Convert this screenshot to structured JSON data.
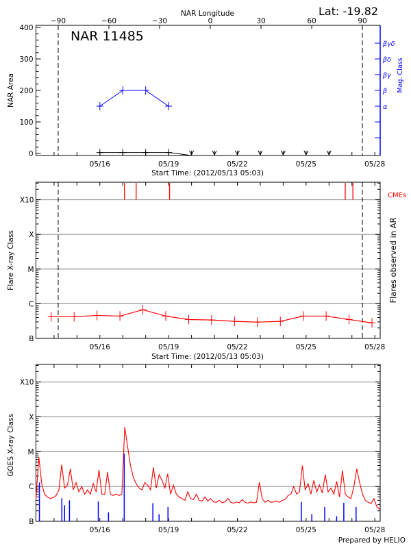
{
  "start_time_label": "Start Time: (2012/05/13 05:03)",
  "footer": "Prepared by HELIO",
  "colors": {
    "area": "#000000",
    "mag_class": "#0000ff",
    "flares": "#ff0000",
    "cme": "#ff0000",
    "goes_long": "#ff0000",
    "goes_short": "#0000ff",
    "grid": "#999999"
  },
  "chart_data": [
    {
      "type": "line",
      "title": "NAR 11485",
      "lat_label": "Lat: -19.82",
      "ylabel": "NAR Area",
      "y2label": "Mag. Class",
      "top_xlabel": "NAR Longitude",
      "xlabel": "Start Time: (2012/05/13 05:03)",
      "xlim": [
        "2012-05-13T05:03",
        "2012-05-28T05:30"
      ],
      "ylim": [
        -6.5,
        406.5
      ],
      "yticks": [
        0,
        100,
        200,
        300,
        400
      ],
      "xticks": [
        "05/16",
        "05/19",
        "05/22",
        "05/25",
        "05/28"
      ],
      "top_xticks": [
        -90,
        -60,
        -30,
        0,
        30,
        60,
        90
      ],
      "limb_longitudes": [
        -90,
        90
      ],
      "mag_class_ticks": [
        {
          "level": 50,
          "label": ""
        },
        {
          "level": 100,
          "label": ""
        },
        {
          "level": 150,
          "label": "α"
        },
        {
          "level": 200,
          "label": "β"
        },
        {
          "level": 250,
          "label": "βγ"
        },
        {
          "level": 300,
          "label": "βδ"
        },
        {
          "level": 350,
          "label": "βγδ"
        }
      ],
      "series": [
        {
          "key": "area",
          "points": [
            [
              "2012-05-16T00:00",
              3
            ],
            [
              "2012-05-17T00:00",
              3
            ],
            [
              "2012-05-18T00:00",
              3
            ],
            [
              "2012-05-19T00:00",
              3
            ]
          ],
          "no_data": [
            "2012-05-20T00:00",
            "2012-05-21T00:00",
            "2012-05-22T00:00",
            "2012-05-23T00:00",
            "2012-05-24T00:00",
            "2012-05-25T00:00",
            "2012-05-26T00:00"
          ]
        },
        {
          "key": "mag_class",
          "points": [
            [
              "2012-05-16T00:00",
              "α"
            ],
            [
              "2012-05-17T00:00",
              "β"
            ],
            [
              "2012-05-18T00:00",
              "β"
            ],
            [
              "2012-05-19T00:00",
              "α"
            ]
          ]
        }
      ]
    },
    {
      "type": "line",
      "ylabel": "Flare X-ray Class",
      "y2label": "Flares observed in AR",
      "cme_label": "CMEs",
      "xlabel": "Start Time: (2012/05/13 05:03)",
      "yscale": "log",
      "ylim": [
        1e-07,
        0.0032
      ],
      "yticks": [
        {
          "value": 1e-07,
          "label": "B"
        },
        {
          "value": 1e-06,
          "label": "C"
        },
        {
          "value": 1e-05,
          "label": "M"
        },
        {
          "value": 0.0001,
          "label": "X"
        },
        {
          "value": 0.001,
          "label": "X10"
        }
      ],
      "xticks": [
        "05/16",
        "05/19",
        "05/22",
        "05/25",
        "05/28"
      ],
      "grid": true,
      "cmes": [
        "2012-05-17T01:45",
        "2012-05-17T14:00",
        "2012-05-19T01:00",
        "2012-05-26T17:00",
        "2012-05-27T01:00"
      ],
      "flares": [
        [
          "2012-05-13T21:00",
          4.2e-07
        ],
        [
          "2012-05-14T21:00",
          4.2e-07
        ],
        [
          "2012-05-15T21:00",
          4.6e-07
        ],
        [
          "2012-05-16T21:00",
          4.4e-07
        ],
        [
          "2012-05-17T21:00",
          6.7e-07
        ],
        [
          "2012-05-18T21:00",
          4.4e-07
        ],
        [
          "2012-05-19T21:00",
          3.5e-07
        ],
        [
          "2012-05-20T21:00",
          3.4e-07
        ],
        [
          "2012-05-21T21:00",
          3.1e-07
        ],
        [
          "2012-05-22T21:00",
          2.95e-07
        ],
        [
          "2012-05-23T21:00",
          3.1e-07
        ],
        [
          "2012-05-24T21:00",
          4.4e-07
        ],
        [
          "2012-05-25T21:00",
          4.4e-07
        ],
        [
          "2012-05-26T21:00",
          3.5e-07
        ],
        [
          "2012-05-27T21:00",
          2.8e-07
        ]
      ]
    },
    {
      "type": "line",
      "ylabel": "GOES X-ray Class",
      "yscale": "log",
      "ylim": [
        1e-07,
        0.0032
      ],
      "yticks": [
        {
          "value": 1e-07,
          "label": "B"
        },
        {
          "value": 1e-06,
          "label": "C"
        },
        {
          "value": 1e-05,
          "label": "M"
        },
        {
          "value": 0.0001,
          "label": "X"
        },
        {
          "value": 0.001,
          "label": "X10"
        }
      ],
      "xticks": [
        "05/16",
        "05/19",
        "05/22",
        "05/25",
        "05/28"
      ],
      "grid": true,
      "goes_long": {
        "start": "2012-05-13T05:03",
        "interval_hours": 3,
        "values": [
          4.5e-07,
          7e-06,
          1.2e-06,
          6e-07,
          5e-07,
          4.5e-07,
          4.8e-07,
          5.5e-07,
          8e-07,
          4.2e-06,
          9e-07,
          1.1e-06,
          3.2e-06,
          8e-07,
          1.3e-06,
          7e-07,
          1e-06,
          6e-07,
          8e-07,
          6e-07,
          1.2e-06,
          7e-07,
          3e-06,
          6e-07,
          6e-07,
          2.6e-06,
          6e-07,
          5.5e-07,
          6e-07,
          5.5e-07,
          6e-07,
          5.1e-05,
          1.4e-05,
          4e-06,
          1.8e-06,
          1.2e-06,
          9e-07,
          8e-07,
          1.3e-06,
          1.1e-06,
          8e-07,
          3.5e-06,
          9e-07,
          2.2e-06,
          1.5e-06,
          9e-07,
          2.3e-06,
          6e-07,
          1.1e-06,
          6e-07,
          5e-07,
          4.5e-07,
          4e-07,
          7e-07,
          4.5e-07,
          4.2e-07,
          6e-07,
          4e-07,
          3.8e-07,
          5e-07,
          3.8e-07,
          4.5e-07,
          3.6e-07,
          3.5e-07,
          4e-07,
          3.4e-07,
          3.6e-07,
          4.5e-07,
          3.5e-07,
          3.3e-07,
          3.6e-07,
          3.4e-07,
          4.2e-07,
          3.5e-07,
          3.3e-07,
          3.6e-07,
          3.4e-07,
          3.5e-07,
          1.3e-06,
          4.5e-07,
          3.5e-07,
          4e-07,
          3.5e-07,
          3.6e-07,
          3.8e-07,
          3.5e-07,
          4e-07,
          4.2e-07,
          5.5e-07,
          6e-07,
          1e-06,
          6e-07,
          7e-07,
          4e-06,
          8e-07,
          1.2e-06,
          6e-07,
          1.5e-06,
          7e-07,
          1.1e-06,
          6.5e-07,
          2.2e-06,
          7e-07,
          9e-07,
          6e-07,
          1.4e-06,
          5e-07,
          2.9e-06,
          6e-07,
          5e-07,
          4.5e-07,
          1e-06,
          3.2e-06,
          1.3e-06,
          6e-07,
          4e-07,
          3.5e-07,
          3.2e-07,
          4.5e-07,
          2.6e-07,
          2.2e-07
        ]
      },
      "goes_short": [
        [
          "2012-05-13T08:40",
          1.3e-06
        ],
        [
          "2012-05-14T08:10",
          4.6e-07
        ],
        [
          "2012-05-14T11:00",
          2.9e-07
        ],
        [
          "2012-05-14T16:10",
          4e-07
        ],
        [
          "2012-05-15T22:20",
          3.7e-07
        ],
        [
          "2012-05-16T09:00",
          1.8e-07
        ],
        [
          "2012-05-17T01:30",
          8.7e-06
        ],
        [
          "2012-05-18T07:30",
          3.3e-07
        ],
        [
          "2012-05-18T14:00",
          1.6e-07
        ],
        [
          "2012-05-18T23:20",
          2.6e-07
        ],
        [
          "2012-05-24T19:00",
          3.6e-07
        ],
        [
          "2012-05-25T06:00",
          1.6e-07
        ],
        [
          "2012-05-25T19:30",
          2.6e-07
        ],
        [
          "2012-05-26T08:00",
          1.4e-07
        ],
        [
          "2012-05-26T15:30",
          3.4e-07
        ],
        [
          "2012-05-27T04:20",
          2.6e-07
        ]
      ]
    }
  ]
}
